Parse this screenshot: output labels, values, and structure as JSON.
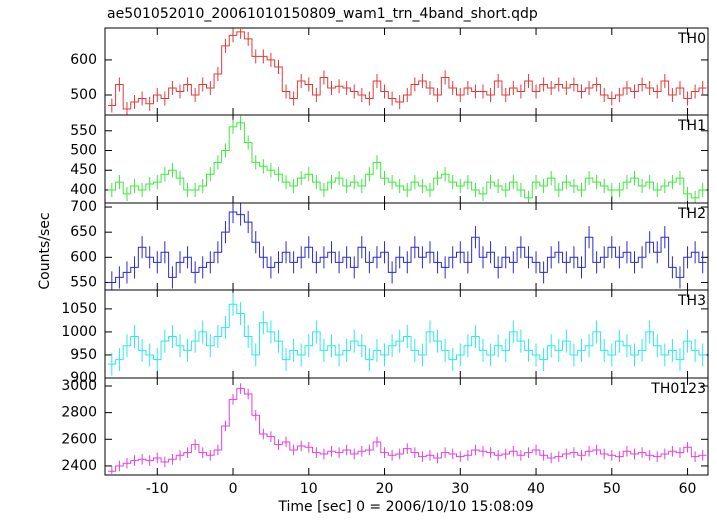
{
  "chart_data": {
    "type": "step",
    "title": "ae501052010_20061010150809_wam1_trn_4band_short.qdp",
    "xlabel": "Time [sec] 0 = 2006/10/10 15:08:09",
    "ylabel": "Counts/sec",
    "xlim": [
      -16.9,
      62.7
    ],
    "xticks": [
      -10,
      0,
      10,
      20,
      30,
      40,
      50,
      60
    ],
    "x": [
      -16,
      -15,
      -14,
      -13,
      -12,
      -11,
      -10,
      -9,
      -8,
      -7,
      -6,
      -5,
      -4,
      -3,
      -2,
      -1,
      0,
      1,
      2,
      3,
      4,
      5,
      6,
      7,
      8,
      9,
      10,
      11,
      12,
      13,
      14,
      15,
      16,
      17,
      18,
      19,
      20,
      21,
      22,
      23,
      24,
      25,
      26,
      27,
      28,
      29,
      30,
      31,
      32,
      33,
      34,
      35,
      36,
      37,
      38,
      39,
      40,
      41,
      42,
      43,
      44,
      45,
      46,
      47,
      48,
      49,
      50,
      51,
      52,
      53,
      54,
      55,
      56,
      57,
      58,
      59,
      60,
      61,
      62
    ],
    "panels": [
      {
        "name": "TH0",
        "color": "#e23a3a",
        "error": 20,
        "ylim": [
          443,
          691
        ],
        "yticks": [
          500,
          600
        ],
        "values": [
          470,
          530,
          460,
          480,
          490,
          475,
          500,
          490,
          520,
          510,
          530,
          500,
          530,
          520,
          560,
          640,
          670,
          680,
          660,
          610,
          610,
          600,
          580,
          510,
          490,
          540,
          530,
          500,
          550,
          520,
          525,
          520,
          510,
          500,
          490,
          540,
          510,
          490,
          480,
          500,
          530,
          540,
          520,
          500,
          550,
          520,
          500,
          520,
          510,
          510,
          500,
          540,
          500,
          520,
          510,
          540,
          510,
          530,
          520,
          530,
          520,
          530,
          510,
          520,
          530,
          500,
          490,
          500,
          520,
          510,
          530,
          520,
          510,
          540,
          500,
          520,
          490,
          510,
          520
        ]
      },
      {
        "name": "TH1",
        "color": "#3ce83c",
        "error": 18,
        "ylim": [
          367,
          590
        ],
        "yticks": [
          400,
          450,
          500,
          550
        ],
        "values": [
          400,
          420,
          390,
          410,
          400,
          415,
          420,
          440,
          450,
          430,
          400,
          400,
          410,
          440,
          470,
          500,
          560,
          570,
          520,
          470,
          460,
          450,
          440,
          420,
          410,
          430,
          440,
          420,
          400,
          420,
          430,
          410,
          420,
          410,
          440,
          470,
          430,
          420,
          410,
          400,
          420,
          410,
          400,
          430,
          440,
          420,
          410,
          420,
          400,
          390,
          420,
          410,
          400,
          420,
          400,
          380,
          420,
          410,
          430,
          400,
          420,
          410,
          400,
          430,
          420,
          410,
          400,
          400,
          420,
          430,
          410,
          420,
          400,
          410,
          420,
          430,
          390,
          380,
          400
        ]
      },
      {
        "name": "TH2",
        "color": "#2a2acf",
        "error": 22,
        "ylim": [
          535,
          708
        ],
        "yticks": [
          550,
          600,
          650,
          700
        ],
        "values": [
          550,
          560,
          570,
          580,
          620,
          600,
          590,
          610,
          560,
          590,
          600,
          570,
          580,
          590,
          610,
          650,
          690,
          685,
          670,
          630,
          600,
          580,
          590,
          610,
          590,
          600,
          620,
          590,
          600,
          610,
          590,
          600,
          580,
          620,
          590,
          600,
          610,
          570,
          600,
          590,
          620,
          600,
          610,
          590,
          580,
          600,
          610,
          590,
          640,
          600,
          610,
          580,
          600,
          590,
          620,
          600,
          590,
          570,
          600,
          610,
          590,
          600,
          580,
          640,
          590,
          600,
          620,
          600,
          610,
          590,
          600,
          630,
          610,
          640,
          580,
          560,
          600,
          610,
          590
        ]
      },
      {
        "name": "TH3",
        "color": "#2ee8e8",
        "error": 25,
        "ylim": [
          900,
          1091
        ],
        "yticks": [
          900,
          950,
          1000,
          1050
        ],
        "values": [
          930,
          940,
          970,
          990,
          960,
          950,
          940,
          980,
          990,
          970,
          960,
          980,
          1000,
          970,
          990,
          1010,
          1060,
          1040,
          990,
          950,
          1020,
          1000,
          980,
          940,
          960,
          950,
          970,
          1000,
          960,
          970,
          950,
          960,
          980,
          970,
          940,
          960,
          950,
          970,
          980,
          990,
          960,
          950,
          1000,
          980,
          960,
          940,
          950,
          970,
          990,
          960,
          950,
          970,
          960,
          1000,
          980,
          960,
          950,
          940,
          970,
          960,
          980,
          950,
          960,
          970,
          1000,
          960,
          950,
          980,
          970,
          950,
          960,
          1000,
          970,
          950,
          960,
          940,
          980,
          960,
          950
        ]
      },
      {
        "name": "TH0123",
        "color": "#e040e0",
        "error": 40,
        "ylim": [
          2332,
          3060
        ],
        "yticks": [
          2400,
          2600,
          2800,
          3000
        ],
        "values": [
          2360,
          2400,
          2420,
          2440,
          2450,
          2440,
          2460,
          2430,
          2450,
          2480,
          2500,
          2560,
          2500,
          2480,
          2520,
          2700,
          2900,
          2980,
          2940,
          2780,
          2640,
          2620,
          2560,
          2580,
          2520,
          2550,
          2540,
          2500,
          2490,
          2510,
          2500,
          2520,
          2490,
          2510,
          2520,
          2580,
          2500,
          2480,
          2490,
          2530,
          2500,
          2470,
          2480,
          2460,
          2500,
          2490,
          2470,
          2480,
          2520,
          2510,
          2500,
          2480,
          2490,
          2510,
          2480,
          2500,
          2520,
          2480,
          2460,
          2470,
          2490,
          2500,
          2480,
          2510,
          2520,
          2490,
          2480,
          2470,
          2510,
          2490,
          2500,
          2480,
          2470,
          2490,
          2510,
          2500,
          2540,
          2470,
          2480
        ]
      }
    ]
  }
}
